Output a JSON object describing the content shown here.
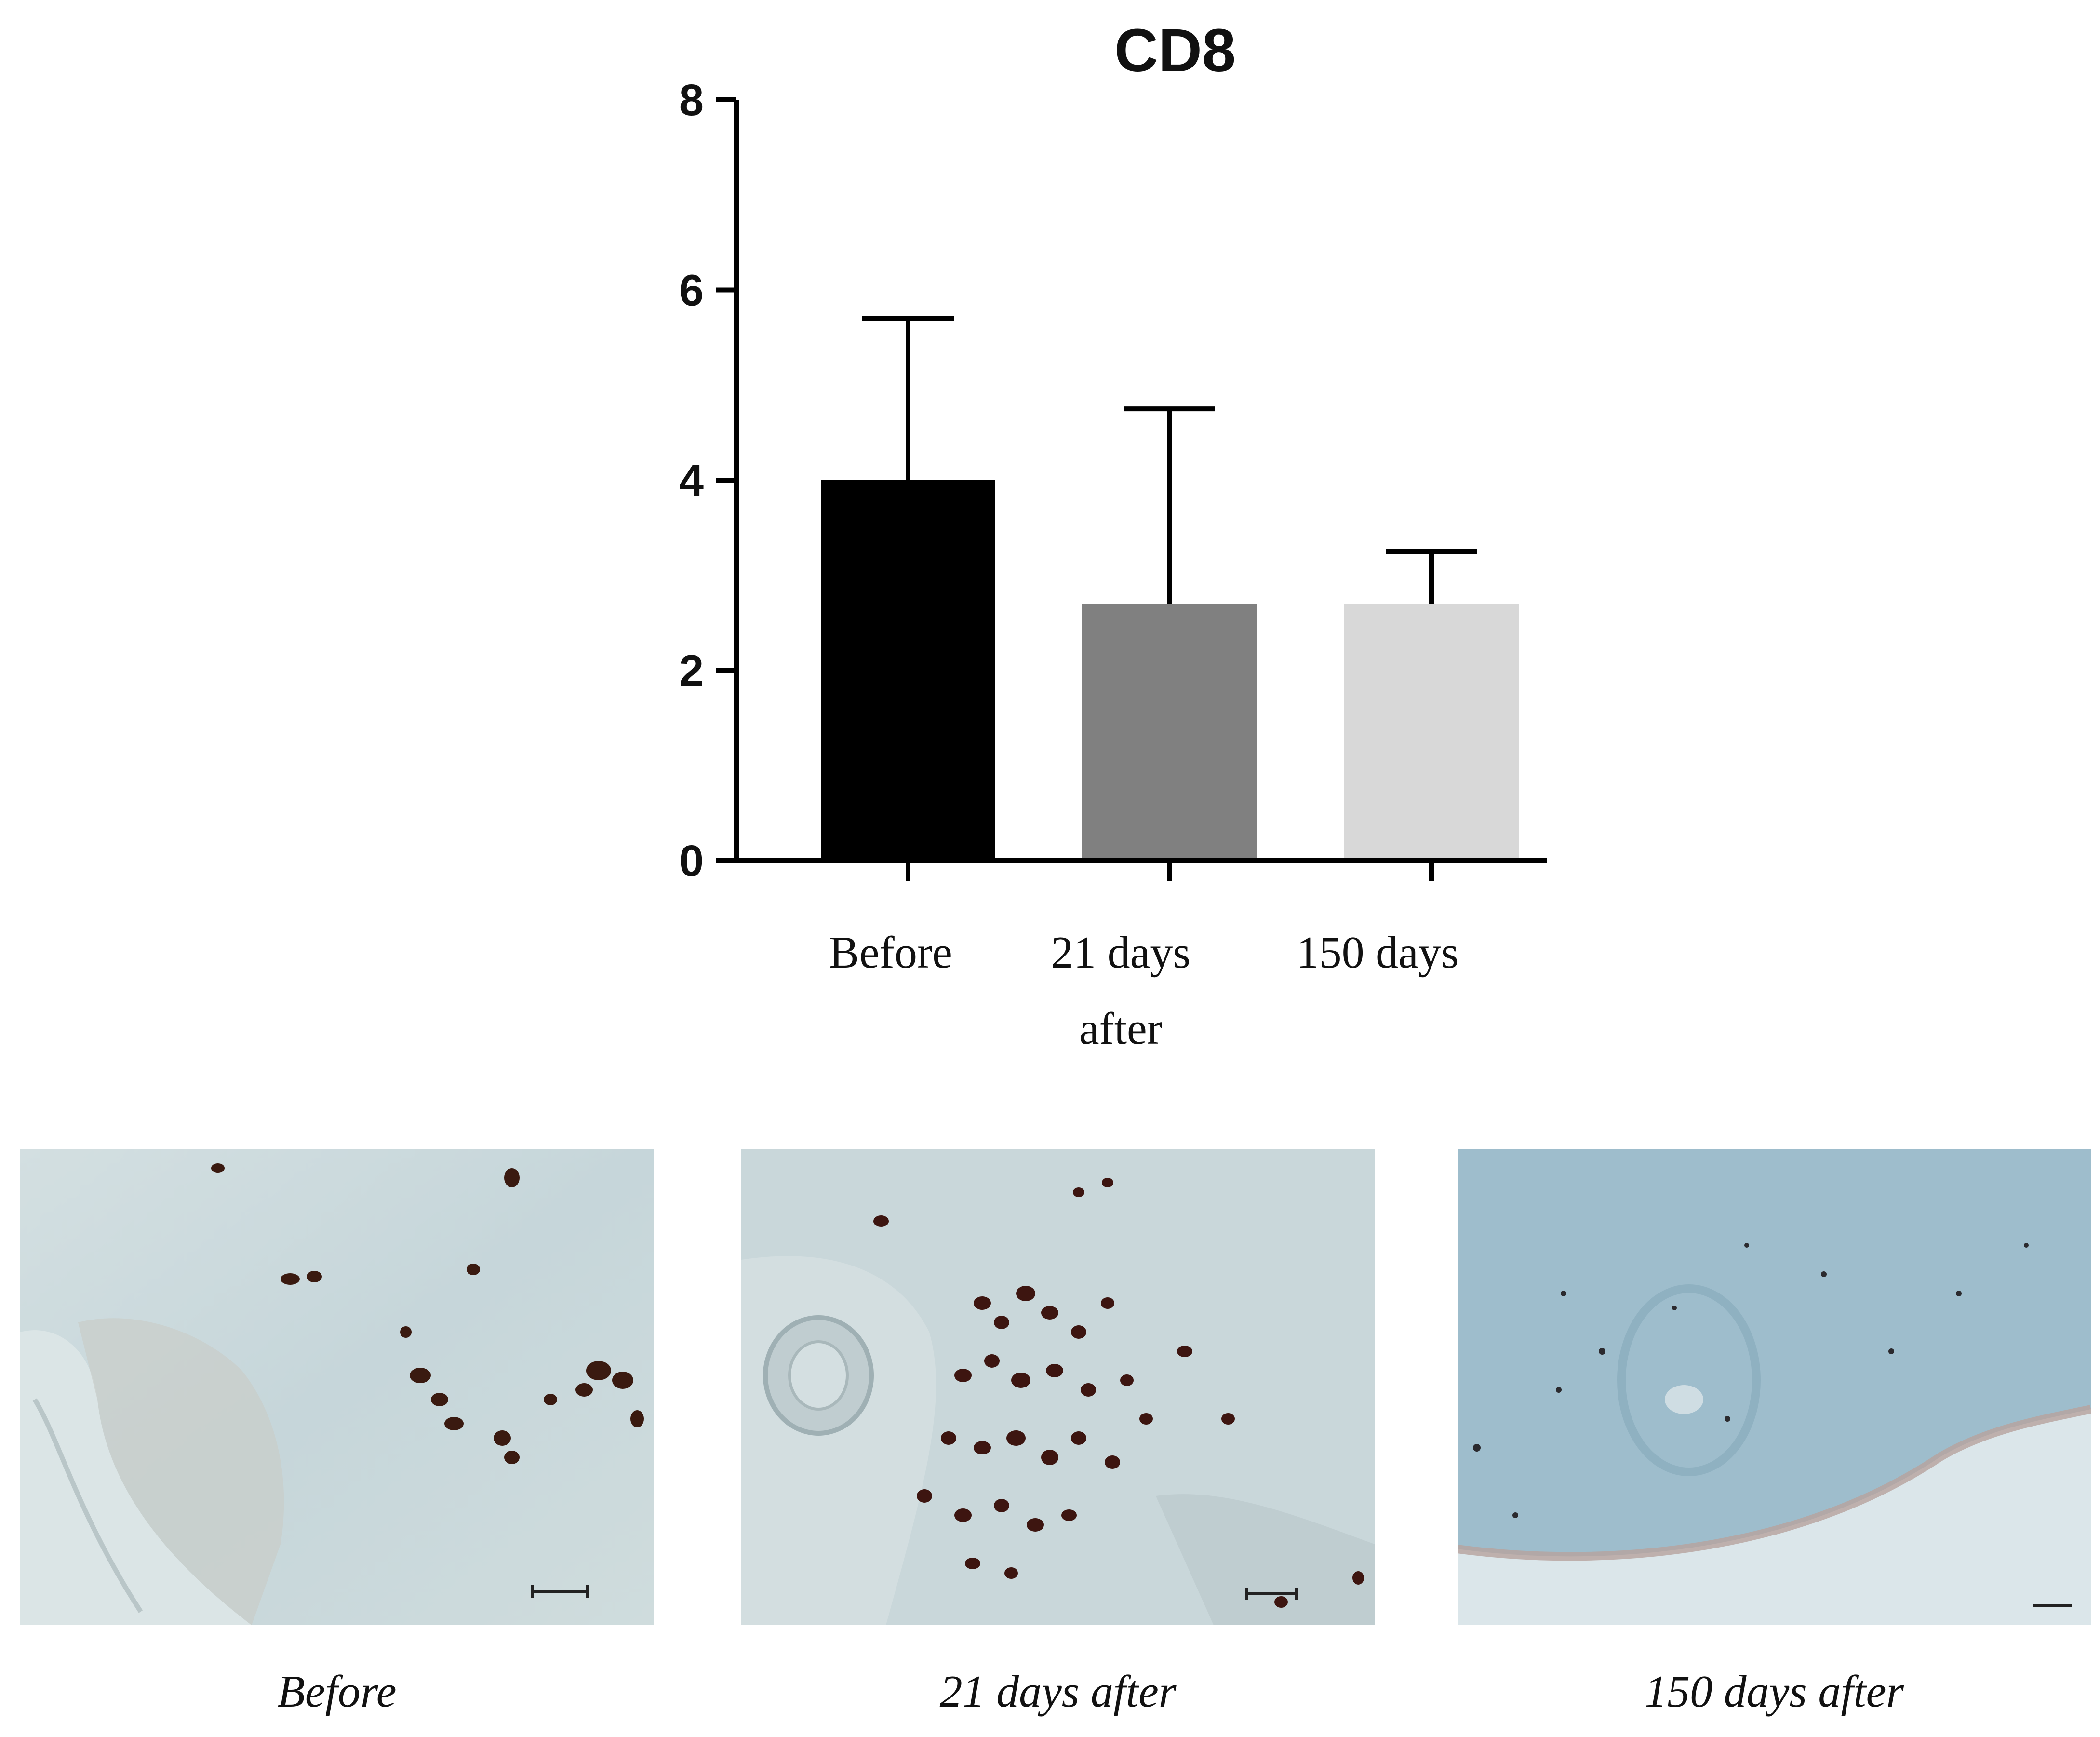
{
  "chart_data": {
    "type": "bar",
    "title": "CD8",
    "categories": [
      "Before",
      "21 days\nafter",
      "150 days"
    ],
    "series": [
      {
        "values": [
          4.0,
          2.7,
          2.7
        ],
        "error_upper": [
          1.7,
          2.05,
          0.55
        ]
      }
    ],
    "bar_colors": [
      "#000000",
      "#808080",
      "#d8d8d8"
    ],
    "ylim": [
      0,
      8
    ],
    "yticks": [
      0,
      2,
      4,
      6,
      8
    ],
    "xlabel": "",
    "ylabel": "",
    "grid": false,
    "legend": "none"
  },
  "panels": [
    {
      "caption": "Before"
    },
    {
      "caption": "21 days after"
    },
    {
      "caption": "150 days after"
    }
  ]
}
